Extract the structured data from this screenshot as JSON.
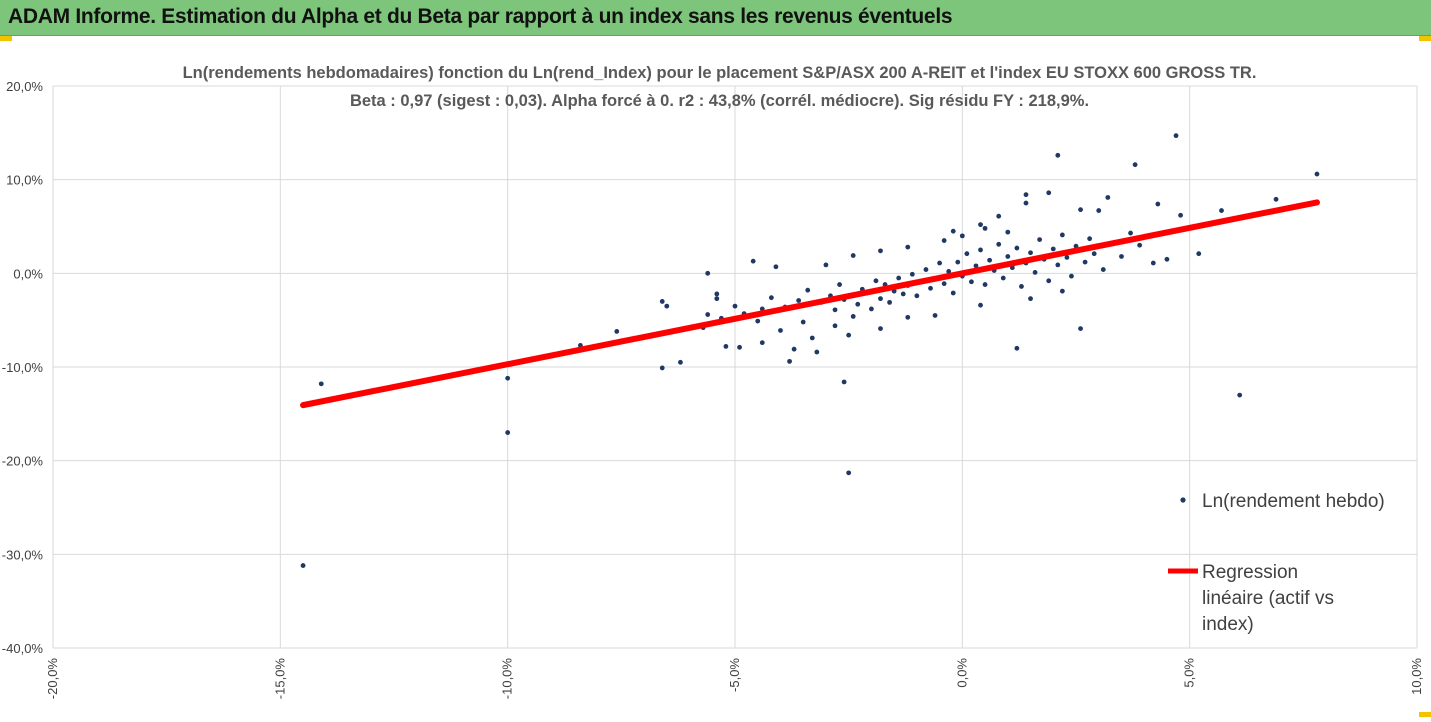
{
  "header": {
    "title": "ADAM Informe. Estimation du Alpha et du Beta par rapport à un index sans les revenus éventuels"
  },
  "colors": {
    "banner": "#7cc57a",
    "points": "#203864",
    "regression": "#ff0000",
    "grid": "#d9d9d9",
    "accent": "#f2c400"
  },
  "chart_data": {
    "type": "scatter",
    "title": "Ln(rendements hebdomadaires) fonction du Ln(rend_Index) pour le placement S&P/ASX 200 A-REIT et l'index EU STOXX 600 GROSS TR.",
    "subtitle": "Beta : 0,97 (sigest : 0,03). Alpha forcé à 0. r2 : 43,8% (corrél. médiocre). Sig résidu FY : 218,9%.",
    "xlabel": "",
    "ylabel": "",
    "xlim": [
      -0.2,
      0.1
    ],
    "ylim": [
      -0.4,
      0.2
    ],
    "x_ticks": [
      "-20,0%",
      "-15,0%",
      "-10,0%",
      "-5,0%",
      "0,0%",
      "5,0%",
      "10,0%"
    ],
    "y_ticks": [
      "20,0%",
      "10,0%",
      "0,0%",
      "-10,0%",
      "-20,0%",
      "-30,0%",
      "-40,0%"
    ],
    "grid": true,
    "legend_position": "right",
    "beta": 0.97,
    "alpha": 0,
    "series": [
      {
        "name": "Ln(rendement hebdo)",
        "type": "scatter",
        "points": [
          [
            -0.145,
            -0.312
          ],
          [
            -0.141,
            -0.118
          ],
          [
            -0.1,
            -0.17
          ],
          [
            -0.1,
            -0.112
          ],
          [
            -0.062,
            -0.095
          ],
          [
            -0.066,
            -0.101
          ],
          [
            -0.066,
            -0.03
          ],
          [
            -0.065,
            -0.035
          ],
          [
            -0.064,
            -0.062
          ],
          [
            -0.076,
            -0.062
          ],
          [
            -0.084,
            -0.081
          ],
          [
            -0.084,
            -0.077
          ],
          [
            -0.075,
            -0.072
          ],
          [
            -0.057,
            -0.058
          ],
          [
            -0.052,
            -0.078
          ],
          [
            -0.054,
            -0.022
          ],
          [
            -0.054,
            -0.027
          ],
          [
            -0.056,
            -0.044
          ],
          [
            -0.056,
            0.0
          ],
          [
            -0.046,
            0.013
          ],
          [
            -0.041,
            0.007
          ],
          [
            -0.049,
            -0.079
          ],
          [
            -0.044,
            -0.074
          ],
          [
            -0.038,
            -0.094
          ],
          [
            -0.032,
            -0.084
          ],
          [
            -0.033,
            -0.069
          ],
          [
            -0.037,
            -0.081
          ],
          [
            -0.026,
            -0.116
          ],
          [
            -0.025,
            -0.213
          ],
          [
            0.012,
            -0.08
          ],
          [
            0.026,
            -0.059
          ],
          [
            0.061,
            -0.13
          ],
          [
            0.078,
            0.106
          ],
          [
            0.069,
            0.079
          ],
          [
            0.057,
            0.067
          ],
          [
            0.047,
            0.147
          ],
          [
            0.038,
            0.116
          ],
          [
            0.021,
            0.126
          ],
          [
            0.048,
            0.062
          ],
          [
            0.043,
            0.074
          ],
          [
            0.052,
            0.021
          ],
          [
            0.042,
            0.011
          ],
          [
            0.045,
            0.015
          ],
          [
            0.039,
            0.03
          ],
          [
            0.032,
            0.081
          ],
          [
            0.03,
            0.067
          ],
          [
            0.026,
            0.068
          ],
          [
            0.019,
            0.086
          ],
          [
            0.014,
            0.075
          ],
          [
            0.014,
            0.084
          ],
          [
            0.008,
            0.061
          ],
          [
            0.004,
            0.052
          ],
          [
            -0.002,
            0.045
          ],
          [
            0.0,
            0.04
          ],
          [
            -0.048,
            -0.043
          ],
          [
            -0.044,
            -0.038
          ],
          [
            -0.042,
            -0.026
          ],
          [
            -0.039,
            -0.036
          ],
          [
            -0.036,
            -0.029
          ],
          [
            -0.034,
            -0.018
          ],
          [
            -0.031,
            -0.031
          ],
          [
            -0.029,
            -0.024
          ],
          [
            -0.028,
            -0.039
          ],
          [
            -0.027,
            -0.012
          ],
          [
            -0.026,
            -0.028
          ],
          [
            -0.024,
            -0.046
          ],
          [
            -0.023,
            -0.033
          ],
          [
            -0.022,
            -0.017
          ],
          [
            -0.021,
            -0.021
          ],
          [
            -0.02,
            -0.038
          ],
          [
            -0.019,
            -0.008
          ],
          [
            -0.018,
            -0.027
          ],
          [
            -0.017,
            -0.012
          ],
          [
            -0.016,
            -0.031
          ],
          [
            -0.015,
            -0.019
          ],
          [
            -0.014,
            -0.005
          ],
          [
            -0.013,
            -0.022
          ],
          [
            -0.012,
            -0.013
          ],
          [
            -0.011,
            -0.001
          ],
          [
            -0.01,
            -0.024
          ],
          [
            -0.009,
            -0.009
          ],
          [
            -0.008,
            0.004
          ],
          [
            -0.007,
            -0.016
          ],
          [
            -0.006,
            -0.006
          ],
          [
            -0.005,
            0.011
          ],
          [
            -0.004,
            -0.011
          ],
          [
            -0.003,
            0.002
          ],
          [
            -0.002,
            -0.021
          ],
          [
            -0.001,
            0.012
          ],
          [
            0.0,
            -0.003
          ],
          [
            0.001,
            0.021
          ],
          [
            0.002,
            -0.009
          ],
          [
            0.003,
            0.008
          ],
          [
            0.004,
            0.025
          ],
          [
            0.005,
            -0.012
          ],
          [
            0.006,
            0.014
          ],
          [
            0.007,
            0.003
          ],
          [
            0.008,
            0.031
          ],
          [
            0.009,
            -0.005
          ],
          [
            0.01,
            0.018
          ],
          [
            0.011,
            0.006
          ],
          [
            0.012,
            0.027
          ],
          [
            0.013,
            -0.014
          ],
          [
            0.014,
            0.011
          ],
          [
            0.015,
            0.022
          ],
          [
            0.016,
            0.001
          ],
          [
            0.017,
            0.036
          ],
          [
            0.018,
            0.015
          ],
          [
            0.019,
            -0.008
          ],
          [
            0.02,
            0.026
          ],
          [
            0.021,
            0.009
          ],
          [
            0.022,
            0.041
          ],
          [
            0.023,
            0.017
          ],
          [
            0.024,
            -0.003
          ],
          [
            0.025,
            0.029
          ],
          [
            0.027,
            0.012
          ],
          [
            0.028,
            0.037
          ],
          [
            0.029,
            0.021
          ],
          [
            0.031,
            0.004
          ],
          [
            0.033,
            0.032
          ],
          [
            0.035,
            0.018
          ],
          [
            0.037,
            0.043
          ],
          [
            -0.03,
            0.009
          ],
          [
            -0.035,
            -0.052
          ],
          [
            -0.04,
            -0.061
          ],
          [
            -0.045,
            -0.051
          ],
          [
            -0.05,
            -0.035
          ],
          [
            -0.053,
            -0.048
          ],
          [
            -0.028,
            -0.056
          ],
          [
            -0.025,
            -0.066
          ],
          [
            -0.018,
            -0.059
          ],
          [
            -0.012,
            -0.047
          ],
          [
            0.004,
            -0.034
          ],
          [
            -0.006,
            -0.045
          ],
          [
            0.015,
            -0.027
          ],
          [
            0.022,
            -0.019
          ],
          [
            0.01,
            0.044
          ],
          [
            0.005,
            0.048
          ],
          [
            -0.004,
            0.035
          ],
          [
            -0.012,
            0.028
          ],
          [
            -0.018,
            0.024
          ],
          [
            -0.024,
            0.019
          ]
        ]
      },
      {
        "name": "Regression linéaire (actif vs index)",
        "type": "line",
        "points": [
          [
            -0.145,
            -0.1407
          ],
          [
            0.078,
            0.0757
          ]
        ]
      }
    ]
  }
}
